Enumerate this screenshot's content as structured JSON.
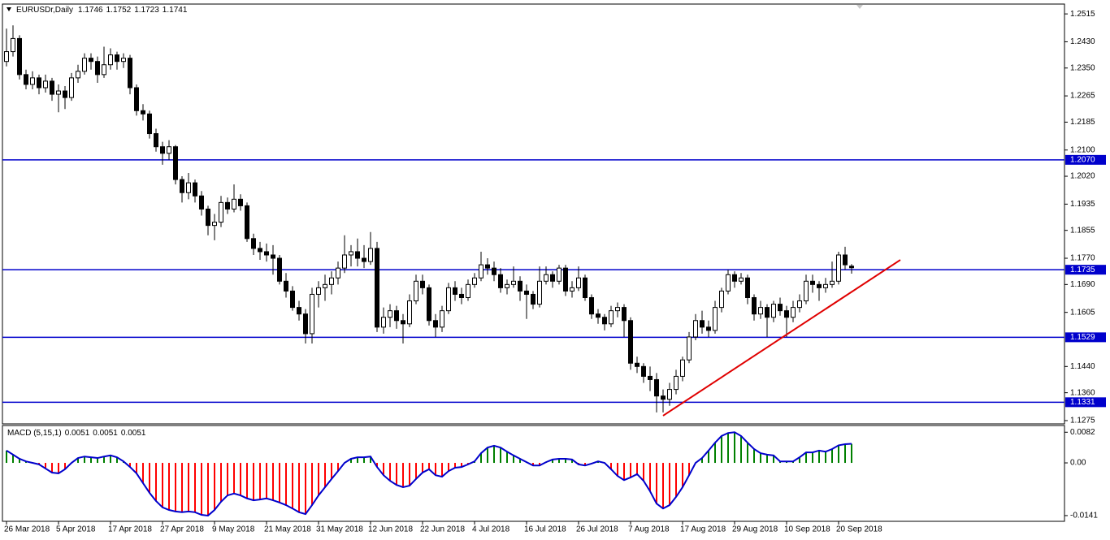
{
  "chart_data": [
    {
      "type": "candlestick",
      "title": "EURUSDr,Daily",
      "x_labels": [
        "26 Mar 2018",
        "5 Apr 2018",
        "17 Apr 2018",
        "27 Apr 2018",
        "9 May 2018",
        "21 May 2018",
        "31 May 2018",
        "12 Jun 2018",
        "22 Jun 2018",
        "4 Jul 2018",
        "16 Jul 2018",
        "26 Jul 2018",
        "7 Aug 2018",
        "17 Aug 2018",
        "29 Aug 2018",
        "10 Sep 2018",
        "20 Sep 2018"
      ],
      "candles": [
        [
          1.237,
          1.247,
          1.2355,
          1.24
        ],
        [
          1.24,
          1.248,
          1.2385,
          1.244
        ],
        [
          1.244,
          1.245,
          1.2315,
          1.233
        ],
        [
          1.233,
          1.2345,
          1.2285,
          1.23
        ],
        [
          1.23,
          1.234,
          1.2285,
          1.232
        ],
        [
          1.232,
          1.233,
          1.227,
          1.229
        ],
        [
          1.229,
          1.233,
          1.2275,
          1.231
        ],
        [
          1.231,
          1.232,
          1.225,
          1.227
        ],
        [
          1.227,
          1.23,
          1.2215,
          1.228
        ],
        [
          1.228,
          1.2295,
          1.2225,
          1.226
        ],
        [
          1.226,
          1.2335,
          1.225,
          1.232
        ],
        [
          1.232,
          1.236,
          1.2305,
          1.234
        ],
        [
          1.234,
          1.2395,
          1.233,
          1.238
        ],
        [
          1.238,
          1.2395,
          1.2345,
          1.237
        ],
        [
          1.237,
          1.2385,
          1.2305,
          1.233
        ],
        [
          1.233,
          1.2415,
          1.232,
          1.236
        ],
        [
          1.236,
          1.241,
          1.2345,
          1.239
        ],
        [
          1.239,
          1.24,
          1.2345,
          1.237
        ],
        [
          1.237,
          1.2395,
          1.235,
          1.238
        ],
        [
          1.238,
          1.239,
          1.227,
          1.229
        ],
        [
          1.229,
          1.23,
          1.2205,
          1.222
        ],
        [
          1.222,
          1.224,
          1.219,
          1.221
        ],
        [
          1.221,
          1.222,
          1.2135,
          1.215
        ],
        [
          1.215,
          1.2165,
          1.2095,
          1.211
        ],
        [
          1.211,
          1.2125,
          1.2055,
          1.209
        ],
        [
          1.209,
          1.213,
          1.207,
          1.211
        ],
        [
          1.211,
          1.2115,
          1.1995,
          1.201
        ],
        [
          1.201,
          1.202,
          1.194,
          1.197
        ],
        [
          1.197,
          1.203,
          1.195,
          1.2
        ],
        [
          1.2,
          1.201,
          1.194,
          1.196
        ],
        [
          1.196,
          1.1975,
          1.19,
          1.192
        ],
        [
          1.192,
          1.193,
          1.184,
          1.187
        ],
        [
          1.187,
          1.1905,
          1.1825,
          1.188
        ],
        [
          1.188,
          1.196,
          1.1865,
          1.194
        ],
        [
          1.194,
          1.1955,
          1.1905,
          1.192
        ],
        [
          1.192,
          1.1995,
          1.191,
          1.195
        ],
        [
          1.195,
          1.1965,
          1.1915,
          1.193
        ],
        [
          1.193,
          1.194,
          1.182,
          1.183
        ],
        [
          1.183,
          1.1845,
          1.178,
          1.18
        ],
        [
          1.18,
          1.182,
          1.1765,
          1.179
        ],
        [
          1.179,
          1.1815,
          1.176,
          1.178
        ],
        [
          1.178,
          1.181,
          1.172,
          1.177
        ],
        [
          1.177,
          1.178,
          1.169,
          1.17
        ],
        [
          1.17,
          1.1725,
          1.165,
          1.167
        ],
        [
          1.167,
          1.1685,
          1.161,
          1.162
        ],
        [
          1.162,
          1.164,
          1.158,
          1.16
        ],
        [
          1.16,
          1.1615,
          1.151,
          1.154
        ],
        [
          1.154,
          1.168,
          1.151,
          1.166
        ],
        [
          1.166,
          1.17,
          1.162,
          1.168
        ],
        [
          1.168,
          1.172,
          1.164,
          1.169
        ],
        [
          1.169,
          1.173,
          1.166,
          1.171
        ],
        [
          1.171,
          1.176,
          1.169,
          1.174
        ],
        [
          1.174,
          1.184,
          1.1725,
          1.178
        ],
        [
          1.178,
          1.181,
          1.1745,
          1.179
        ],
        [
          1.179,
          1.183,
          1.1745,
          1.177
        ],
        [
          1.177,
          1.181,
          1.174,
          1.176
        ],
        [
          1.176,
          1.185,
          1.175,
          1.18
        ],
        [
          1.18,
          1.182,
          1.1545,
          1.156
        ],
        [
          1.156,
          1.162,
          1.154,
          1.159
        ],
        [
          1.159,
          1.163,
          1.156,
          1.161
        ],
        [
          1.161,
          1.1625,
          1.1555,
          1.158
        ],
        [
          1.158,
          1.16,
          1.151,
          1.157
        ],
        [
          1.157,
          1.166,
          1.156,
          1.164
        ],
        [
          1.164,
          1.172,
          1.163,
          1.17
        ],
        [
          1.17,
          1.172,
          1.166,
          1.168
        ],
        [
          1.168,
          1.169,
          1.1565,
          1.158
        ],
        [
          1.158,
          1.16,
          1.153,
          1.156
        ],
        [
          1.156,
          1.1625,
          1.1545,
          1.161
        ],
        [
          1.161,
          1.1695,
          1.16,
          1.168
        ],
        [
          1.168,
          1.17,
          1.164,
          1.166
        ],
        [
          1.166,
          1.168,
          1.163,
          1.165
        ],
        [
          1.165,
          1.1705,
          1.164,
          1.169
        ],
        [
          1.169,
          1.1725,
          1.168,
          1.171
        ],
        [
          1.171,
          1.179,
          1.17,
          1.175
        ],
        [
          1.175,
          1.177,
          1.172,
          1.174
        ],
        [
          1.174,
          1.176,
          1.17,
          1.172
        ],
        [
          1.172,
          1.174,
          1.1665,
          1.168
        ],
        [
          1.168,
          1.1705,
          1.166,
          1.169
        ],
        [
          1.169,
          1.1745,
          1.168,
          1.17
        ],
        [
          1.17,
          1.1715,
          1.164,
          1.167
        ],
        [
          1.167,
          1.169,
          1.1585,
          1.166
        ],
        [
          1.166,
          1.167,
          1.1615,
          1.163
        ],
        [
          1.163,
          1.1745,
          1.162,
          1.17
        ],
        [
          1.17,
          1.1745,
          1.169,
          1.172
        ],
        [
          1.172,
          1.173,
          1.168,
          1.17
        ],
        [
          1.17,
          1.175,
          1.169,
          1.174
        ],
        [
          1.174,
          1.175,
          1.1655,
          1.167
        ],
        [
          1.167,
          1.17,
          1.165,
          1.168
        ],
        [
          1.168,
          1.1745,
          1.167,
          1.171
        ],
        [
          1.171,
          1.172,
          1.164,
          1.165
        ],
        [
          1.165,
          1.166,
          1.1585,
          1.16
        ],
        [
          1.16,
          1.1615,
          1.157,
          1.159
        ],
        [
          1.159,
          1.16,
          1.155,
          1.157
        ],
        [
          1.157,
          1.1625,
          1.156,
          1.161
        ],
        [
          1.161,
          1.1635,
          1.159,
          1.162
        ],
        [
          1.162,
          1.163,
          1.153,
          1.158
        ],
        [
          1.158,
          1.159,
          1.143,
          1.145
        ],
        [
          1.145,
          1.147,
          1.142,
          1.144
        ],
        [
          1.144,
          1.145,
          1.139,
          1.141
        ],
        [
          1.141,
          1.144,
          1.1365,
          1.14
        ],
        [
          1.14,
          1.142,
          1.13,
          1.135
        ],
        [
          1.135,
          1.137,
          1.13,
          1.134
        ],
        [
          1.134,
          1.139,
          1.132,
          1.137
        ],
        [
          1.137,
          1.143,
          1.1355,
          1.141
        ],
        [
          1.141,
          1.147,
          1.1395,
          1.146
        ],
        [
          1.146,
          1.1545,
          1.145,
          1.153
        ],
        [
          1.153,
          1.16,
          1.152,
          1.158
        ],
        [
          1.158,
          1.161,
          1.154,
          1.156
        ],
        [
          1.156,
          1.158,
          1.153,
          1.155
        ],
        [
          1.155,
          1.164,
          1.154,
          1.162
        ],
        [
          1.162,
          1.168,
          1.1605,
          1.167
        ],
        [
          1.167,
          1.1735,
          1.166,
          1.172
        ],
        [
          1.172,
          1.173,
          1.168,
          1.17
        ],
        [
          1.17,
          1.1725,
          1.169,
          1.171
        ],
        [
          1.171,
          1.172,
          1.163,
          1.165
        ],
        [
          1.165,
          1.166,
          1.158,
          1.16
        ],
        [
          1.16,
          1.164,
          1.1585,
          1.162
        ],
        [
          1.162,
          1.163,
          1.153,
          1.159
        ],
        [
          1.159,
          1.164,
          1.1575,
          1.163
        ],
        [
          1.163,
          1.165,
          1.1595,
          1.161
        ],
        [
          1.161,
          1.1625,
          1.153,
          1.159
        ],
        [
          1.159,
          1.164,
          1.1575,
          1.162
        ],
        [
          1.162,
          1.166,
          1.1605,
          1.164
        ],
        [
          1.164,
          1.172,
          1.163,
          1.17
        ],
        [
          1.17,
          1.172,
          1.1665,
          1.169
        ],
        [
          1.169,
          1.17,
          1.164,
          1.168
        ],
        [
          1.168,
          1.171,
          1.1665,
          1.169
        ],
        [
          1.169,
          1.176,
          1.168,
          1.17
        ],
        [
          1.17,
          1.179,
          1.169,
          1.178
        ],
        [
          1.178,
          1.1805,
          1.1735,
          1.175
        ],
        [
          1.1746,
          1.1752,
          1.1723,
          1.1741
        ]
      ],
      "up_color": "#ffffff",
      "down_color": "#000000",
      "ylim": [
        1.1265,
        1.2545
      ],
      "yticks": [
        1.2515,
        {
          "value": 1.243,
          "label": "1.2430"
        },
        {
          "value": 1.235,
          "label": "1.2350"
        },
        1.2265,
        1.2185,
        {
          "value": 1.21,
          "label": "1.2100"
        },
        {
          "value": 1.202,
          "label": "1.2020"
        },
        1.1935,
        1.1855,
        {
          "value": 1.177,
          "label": "1.1770"
        },
        {
          "value": 1.169,
          "label": "1.1690"
        },
        1.1605,
        {
          "value": 1.144,
          "label": "1.1440"
        },
        {
          "value": 1.136,
          "label": "1.1360"
        },
        1.1275
      ],
      "levels": [
        {
          "value": 1.207,
          "label": "1.2070"
        },
        1.1735,
        1.1529,
        1.1331
      ],
      "level_color": "#0000cc",
      "trendline": {
        "from": [
          101,
          1.129
        ],
        "to": [
          137.5,
          1.1765
        ],
        "color": "#e00000"
      }
    },
    {
      "type": "macd",
      "title": "MACD (5,15,1)",
      "values": [
        0.0033,
        0.0022,
        0.0011,
        0.0004,
        0.0,
        -0.0004,
        -0.0015,
        -0.0026,
        -0.0028,
        -0.0017,
        0.0,
        0.0013,
        0.0017,
        0.0015,
        0.0013,
        0.0017,
        0.002,
        0.0015,
        0.0004,
        -0.0011,
        -0.0028,
        -0.0054,
        -0.008,
        -0.0102,
        -0.0119,
        -0.0126,
        -0.013,
        -0.0132,
        -0.013,
        -0.0132,
        -0.0139,
        -0.0141,
        -0.0126,
        -0.0104,
        -0.0087,
        -0.0082,
        -0.0087,
        -0.0095,
        -0.01,
        -0.0098,
        -0.0095,
        -0.01,
        -0.0106,
        -0.0113,
        -0.0122,
        -0.0132,
        -0.0137,
        -0.0113,
        -0.0087,
        -0.0065,
        -0.0043,
        -0.0022,
        0.0,
        0.0011,
        0.0015,
        0.0015,
        0.0017,
        -0.0011,
        -0.0033,
        -0.0048,
        -0.0059,
        -0.0065,
        -0.0061,
        -0.0043,
        -0.0026,
        -0.0017,
        -0.0033,
        -0.0037,
        -0.0022,
        -0.0013,
        -0.0011,
        -0.0004,
        0.0004,
        0.0026,
        0.0041,
        0.0046,
        0.0041,
        0.003,
        0.002,
        0.0011,
        0.0002,
        -0.0007,
        -0.0007,
        0.0002,
        0.0009,
        0.0011,
        0.0011,
        0.0009,
        -0.0004,
        -0.0007,
        -0.0002,
        0.0004,
        0.0,
        -0.0017,
        -0.0035,
        -0.0046,
        -0.0039,
        -0.003,
        -0.0048,
        -0.0076,
        -0.0109,
        -0.0122,
        -0.0113,
        -0.0091,
        -0.0065,
        -0.0033,
        0.0,
        0.0013,
        0.0033,
        0.0054,
        0.0072,
        0.008,
        0.0082,
        0.0072,
        0.0054,
        0.0037,
        0.0026,
        0.0022,
        0.002,
        0.0004,
        0.0004,
        0.0004,
        0.0015,
        0.0028,
        0.0028,
        0.0033,
        0.003,
        0.0037,
        0.0047,
        0.005,
        0.0051
      ],
      "positive_color": "#008000",
      "negative_color": "#ff0000",
      "line_color": "#0000cc",
      "ylim": [
        -0.0152,
        0.01
      ],
      "yticks": [
        0.0082,
        {
          "value": 0,
          "label": "0.00"
        },
        -0.0141
      ]
    }
  ]
}
